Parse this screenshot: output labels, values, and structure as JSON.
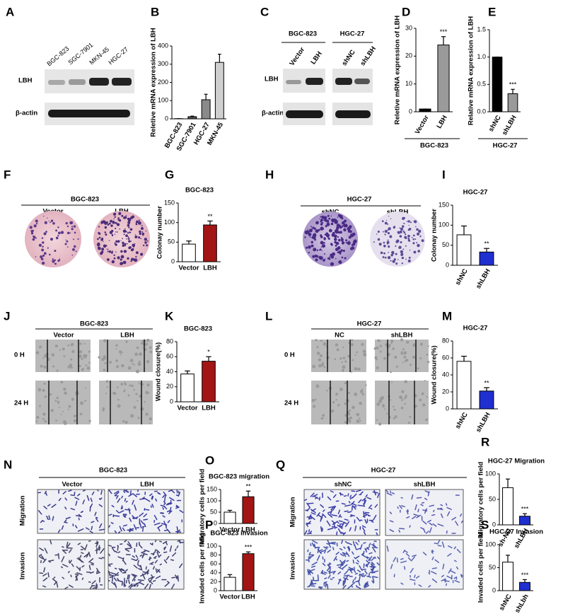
{
  "panels": {
    "A": {
      "letter": "A",
      "lanes": [
        "BGC-823",
        "SGC-7901",
        "MKN-45",
        "HGC-27"
      ],
      "rows": [
        "LBH",
        "β-actin"
      ]
    },
    "C": {
      "letter": "C",
      "groups": [
        "BGC-823",
        "HGC-27"
      ],
      "lanes": [
        "Vector",
        "LBH",
        "shNC",
        "shLBH"
      ],
      "rows": [
        "LBH",
        "β-actin"
      ]
    },
    "F": {
      "letter": "F",
      "title": "BGC-823",
      "labels": [
        "Vector",
        "LBH"
      ]
    },
    "H": {
      "letter": "H",
      "title": "HGC-27",
      "labels": [
        "shNC",
        "shLBH"
      ]
    },
    "J": {
      "letter": "J",
      "title": "BGC-823",
      "labels": [
        "Vector",
        "LBH"
      ],
      "rows": [
        "0 H",
        "24 H"
      ]
    },
    "L": {
      "letter": "L",
      "title": "HGC-27",
      "labels": [
        "NC",
        "shLBH"
      ],
      "rows": [
        "0 H",
        "24 H"
      ]
    },
    "N": {
      "letter": "N",
      "title": "BGC-823",
      "labels": [
        "Vector",
        "LBH"
      ],
      "rows": [
        "Migration",
        "Invasion"
      ]
    },
    "Q": {
      "letter": "Q",
      "title": "HGC-27",
      "labels": [
        "shNC",
        "shLBH"
      ],
      "rows": [
        "Migration",
        "Invasion"
      ]
    }
  },
  "chart_data": [
    {
      "type": "bar",
      "letter": "B",
      "ylabel": "Reletive mRNA expression of LBH",
      "categories": [
        "BGC-823",
        "SGC-7901",
        "HGC-27",
        "MKN-45"
      ],
      "values": [
        1,
        12,
        105,
        310
      ],
      "errors": [
        0,
        3,
        30,
        45
      ],
      "colors": [
        "#000000",
        "#555555",
        "#8a8a8a",
        "#cfcfcf"
      ],
      "ylim": [
        0,
        400
      ],
      "yticks": [
        0,
        100,
        200,
        300,
        400
      ]
    },
    {
      "type": "bar",
      "letter": "D",
      "ylabel": "Reletive mRNA expression of LBH",
      "categories": [
        "Vector",
        "LBH"
      ],
      "values": [
        1,
        24
      ],
      "errors": [
        0,
        3
      ],
      "colors": [
        "#000000",
        "#9a9a9a"
      ],
      "ylim": [
        0,
        30
      ],
      "yticks": [
        0,
        10,
        20,
        30
      ],
      "annotation": "***",
      "group_label": "BGC-823"
    },
    {
      "type": "bar",
      "letter": "E",
      "ylabel": "Relative mRNA expression of LBH",
      "categories": [
        "shNC",
        "shLBH"
      ],
      "values": [
        1.0,
        0.33
      ],
      "errors": [
        0,
        0.08
      ],
      "colors": [
        "#000000",
        "#9a9a9a"
      ],
      "ylim": [
        0,
        1.5
      ],
      "yticks": [
        {
          "value": 0,
          "label": "0.0"
        },
        {
          "value": 0.5,
          "label": "0.5"
        },
        {
          "value": 1,
          "label": "1.0"
        },
        {
          "value": 1.5,
          "label": "1.5"
        }
      ],
      "annotation": "***",
      "group_label": "HGC-27"
    },
    {
      "type": "bar",
      "letter": "G",
      "title": "BGC-823",
      "ylabel": "Colonay number",
      "categories": [
        "Vector",
        "LBH"
      ],
      "values": [
        45,
        94
      ],
      "errors": [
        8,
        10
      ],
      "colors": [
        "#ffffff",
        "#a31515"
      ],
      "ylim": [
        0,
        150
      ],
      "yticks": [
        0,
        50,
        100,
        150
      ],
      "annotation": "**"
    },
    {
      "type": "bar",
      "letter": "I",
      "title": "HGC-27",
      "ylabel": "Colonay number",
      "categories": [
        "shNC",
        "shLBH"
      ],
      "values": [
        76,
        33
      ],
      "errors": [
        22,
        9
      ],
      "colors": [
        "#ffffff",
        "#1f2fd0"
      ],
      "ylim": [
        0,
        150
      ],
      "yticks": [
        0,
        50,
        100,
        150
      ],
      "annotation": "**"
    },
    {
      "type": "bar",
      "letter": "K",
      "title": "BGC-823",
      "ylabel": "Wound closure(%)",
      "categories": [
        "Vector",
        "LBH"
      ],
      "values": [
        37,
        54
      ],
      "errors": [
        4,
        6
      ],
      "colors": [
        "#ffffff",
        "#a31515"
      ],
      "ylim": [
        0,
        80
      ],
      "yticks": [
        0,
        20,
        40,
        60,
        80
      ],
      "annotation": "*"
    },
    {
      "type": "bar",
      "letter": "M",
      "title": "HGC-27",
      "ylabel": "Wound closure(%)",
      "categories": [
        "shNC",
        "shLBH"
      ],
      "values": [
        56,
        21
      ],
      "errors": [
        6,
        4
      ],
      "colors": [
        "#ffffff",
        "#1f2fd0"
      ],
      "ylim": [
        0,
        80
      ],
      "yticks": [
        0,
        20,
        40,
        60,
        80
      ],
      "annotation": "**"
    },
    {
      "type": "bar",
      "letter": "O",
      "title": "BGC-823 migration",
      "ylabel": "Migratory cells per field",
      "categories": [
        "Vector",
        "LBH"
      ],
      "values": [
        50,
        118
      ],
      "errors": [
        8,
        25
      ],
      "colors": [
        "#ffffff",
        "#a31515"
      ],
      "ylim": [
        0,
        150
      ],
      "yticks": [
        0,
        50,
        100,
        150
      ],
      "annotation": "**"
    },
    {
      "type": "bar",
      "letter": "P",
      "title": "BGC-823 invasion",
      "ylabel": "Invaded cells per field",
      "categories": [
        "Vector",
        "LBH"
      ],
      "values": [
        30,
        83
      ],
      "errors": [
        6,
        4
      ],
      "colors": [
        "#ffffff",
        "#a31515"
      ],
      "ylim": [
        0,
        100
      ],
      "yticks": [
        0,
        20,
        40,
        60,
        80,
        100
      ],
      "annotation": "***"
    },
    {
      "type": "bar",
      "letter": "R",
      "title": "HGC-27 Migration",
      "ylabel": "Migratory cells per field",
      "categories": [
        "sh-NC",
        "shLBH"
      ],
      "values": [
        73,
        17
      ],
      "errors": [
        17,
        5
      ],
      "colors": [
        "#ffffff",
        "#1f2fd0"
      ],
      "ylim": [
        0,
        100
      ],
      "yticks": [
        0,
        50,
        100
      ],
      "annotation": "***"
    },
    {
      "type": "bar",
      "letter": "S",
      "title": "HGC-27 Invasion",
      "ylabel": "Invaded cells per field",
      "categories": [
        "shNC",
        "shLbh"
      ],
      "values": [
        62,
        18
      ],
      "errors": [
        15,
        6
      ],
      "colors": [
        "#ffffff",
        "#1f2fd0"
      ],
      "ylim": [
        0,
        100
      ],
      "yticks": [
        0,
        50,
        100
      ],
      "annotation": "***"
    }
  ]
}
